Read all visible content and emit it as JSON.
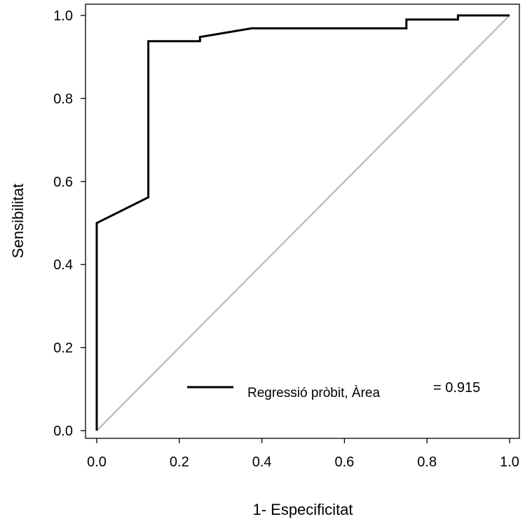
{
  "chart_data": {
    "type": "line",
    "title": "",
    "xlabel": "1- Especificitat",
    "ylabel": "Sensibilitat",
    "xlim": [
      0,
      1
    ],
    "ylim": [
      0,
      1
    ],
    "x_ticks": [
      "0.0",
      "0.2",
      "0.4",
      "0.6",
      "0.8",
      "1.0"
    ],
    "y_ticks": [
      "0.0",
      "0.2",
      "0.4",
      "0.6",
      "0.8",
      "1.0"
    ],
    "grid": false,
    "legend_position": "bottom-right",
    "series": [
      {
        "name": "Regressió pròbit, Àrea",
        "color": "#000000",
        "x": [
          0.0,
          0.0,
          0.0,
          0.125,
          0.125,
          0.125,
          0.25,
          0.25,
          0.375,
          0.75,
          0.75,
          0.875,
          0.875,
          1.0
        ],
        "y": [
          0.0,
          0.5,
          0.5,
          0.562,
          0.562,
          0.938,
          0.938,
          0.948,
          0.969,
          0.969,
          0.99,
          0.99,
          1.0,
          1.0
        ]
      },
      {
        "color": "#c0c0c0",
        "x": [
          0.0,
          1.0
        ],
        "y": [
          0.0,
          1.0
        ]
      }
    ],
    "annotations": [
      {
        "label": "Regressió pròbit, Àrea",
        "value": "= 0.915"
      }
    ]
  }
}
